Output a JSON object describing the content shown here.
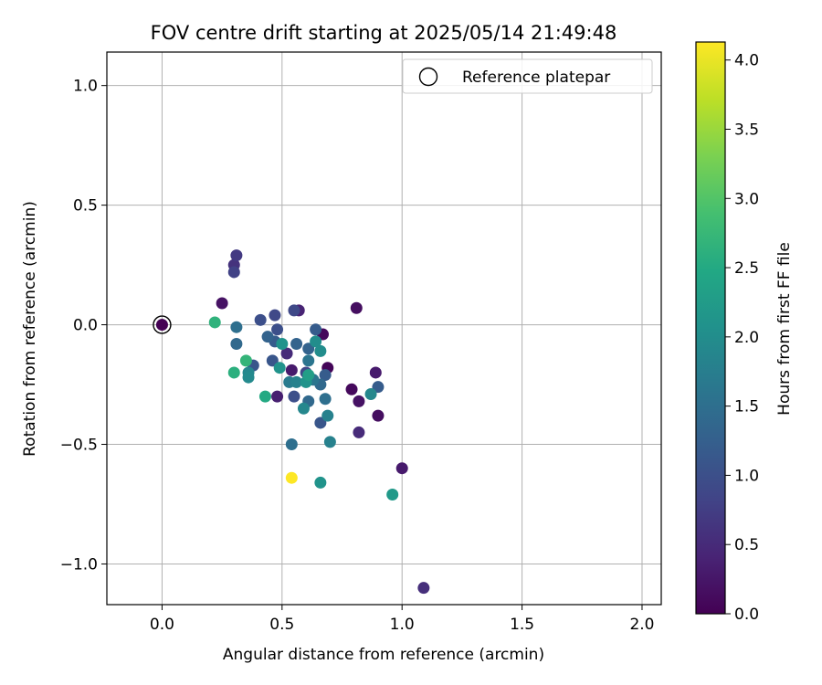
{
  "chart_data": {
    "type": "scatter",
    "title": "FOV centre drift starting at 2025/05/14 21:49:48",
    "xlabel": "Angular distance from reference (arcmin)",
    "ylabel": "Rotation from reference (arcmin)",
    "xlim": [
      -0.23,
      2.08
    ],
    "ylim": [
      -1.17,
      1.14
    ],
    "x_ticks": [
      0.0,
      0.5,
      1.0,
      1.5,
      2.0
    ],
    "x_tick_labels": [
      "0.0",
      "0.5",
      "1.0",
      "1.5",
      "2.0"
    ],
    "y_ticks": [
      -1.0,
      -0.5,
      0.0,
      0.5,
      1.0
    ],
    "y_tick_labels": [
      "−1.0",
      "−0.5",
      "0.0",
      "0.5",
      "1.0"
    ],
    "grid": true,
    "legend": {
      "placement": "top-right",
      "entries": [
        {
          "label": "Reference platepar",
          "marker": "open-circle",
          "color": "#000000"
        }
      ]
    },
    "colorbar": {
      "label": "Hours from first FF file",
      "colormap": "viridis",
      "range": [
        0.0,
        4.13
      ],
      "ticks": [
        0.0,
        0.5,
        1.0,
        1.5,
        2.0,
        2.5,
        3.0,
        3.5,
        4.0
      ],
      "tick_labels": [
        "0.0",
        "0.5",
        "1.0",
        "1.5",
        "2.0",
        "2.5",
        "3.0",
        "3.5",
        "4.0"
      ]
    },
    "reference_point": {
      "x": 0.0,
      "y": 0.0
    },
    "points": [
      {
        "x": 0.0,
        "y": 0.0,
        "c": 0.0
      },
      {
        "x": 0.25,
        "y": 0.09,
        "c": 0.2
      },
      {
        "x": 0.81,
        "y": 0.07,
        "c": 0.15
      },
      {
        "x": 0.67,
        "y": -0.04,
        "c": 0.1
      },
      {
        "x": 0.69,
        "y": -0.18,
        "c": 0.05
      },
      {
        "x": 0.79,
        "y": -0.27,
        "c": 0.1
      },
      {
        "x": 0.82,
        "y": -0.32,
        "c": 0.2
      },
      {
        "x": 0.9,
        "y": -0.38,
        "c": 0.15
      },
      {
        "x": 0.89,
        "y": -0.2,
        "c": 0.3
      },
      {
        "x": 0.82,
        "y": -0.45,
        "c": 0.5
      },
      {
        "x": 1.0,
        "y": -0.6,
        "c": 0.3
      },
      {
        "x": 1.09,
        "y": -1.1,
        "c": 0.55
      },
      {
        "x": 0.54,
        "y": -0.19,
        "c": 0.3
      },
      {
        "x": 0.48,
        "y": -0.3,
        "c": 0.35
      },
      {
        "x": 0.57,
        "y": 0.06,
        "c": 0.4
      },
      {
        "x": 0.52,
        "y": -0.12,
        "c": 0.5
      },
      {
        "x": 0.3,
        "y": 0.25,
        "c": 0.6
      },
      {
        "x": 0.31,
        "y": 0.29,
        "c": 0.7
      },
      {
        "x": 0.3,
        "y": 0.22,
        "c": 0.8
      },
      {
        "x": 0.55,
        "y": 0.06,
        "c": 0.9
      },
      {
        "x": 0.47,
        "y": 0.04,
        "c": 0.9
      },
      {
        "x": 0.41,
        "y": 0.02,
        "c": 1.0
      },
      {
        "x": 0.48,
        "y": -0.02,
        "c": 1.0
      },
      {
        "x": 0.38,
        "y": -0.17,
        "c": 1.1
      },
      {
        "x": 0.46,
        "y": -0.15,
        "c": 1.1
      },
      {
        "x": 0.55,
        "y": -0.3,
        "c": 1.0
      },
      {
        "x": 0.6,
        "y": -0.2,
        "c": 0.9
      },
      {
        "x": 0.66,
        "y": -0.41,
        "c": 1.1
      },
      {
        "x": 0.68,
        "y": -0.21,
        "c": 1.2
      },
      {
        "x": 0.9,
        "y": -0.26,
        "c": 1.2
      },
      {
        "x": 0.64,
        "y": -0.02,
        "c": 1.2
      },
      {
        "x": 0.61,
        "y": -0.1,
        "c": 1.3
      },
      {
        "x": 0.56,
        "y": -0.08,
        "c": 1.3
      },
      {
        "x": 0.47,
        "y": -0.07,
        "c": 1.2
      },
      {
        "x": 0.44,
        "y": -0.05,
        "c": 1.3
      },
      {
        "x": 0.61,
        "y": -0.32,
        "c": 1.4
      },
      {
        "x": 0.66,
        "y": -0.25,
        "c": 1.4
      },
      {
        "x": 0.31,
        "y": -0.08,
        "c": 1.4
      },
      {
        "x": 0.31,
        "y": -0.01,
        "c": 1.5
      },
      {
        "x": 0.54,
        "y": -0.5,
        "c": 1.5
      },
      {
        "x": 0.68,
        "y": -0.31,
        "c": 1.5
      },
      {
        "x": 0.61,
        "y": -0.15,
        "c": 1.6
      },
      {
        "x": 0.63,
        "y": -0.23,
        "c": 1.6
      },
      {
        "x": 0.53,
        "y": -0.24,
        "c": 1.7
      },
      {
        "x": 0.56,
        "y": -0.24,
        "c": 1.8
      },
      {
        "x": 0.69,
        "y": -0.38,
        "c": 1.8
      },
      {
        "x": 0.7,
        "y": -0.49,
        "c": 1.8
      },
      {
        "x": 0.59,
        "y": -0.35,
        "c": 1.9
      },
      {
        "x": 0.36,
        "y": -0.2,
        "c": 1.9
      },
      {
        "x": 0.36,
        "y": -0.22,
        "c": 1.95
      },
      {
        "x": 0.64,
        "y": -0.07,
        "c": 2.0
      },
      {
        "x": 0.66,
        "y": -0.11,
        "c": 2.0
      },
      {
        "x": 0.5,
        "y": -0.08,
        "c": 2.1
      },
      {
        "x": 0.49,
        "y": -0.18,
        "c": 2.1
      },
      {
        "x": 0.6,
        "y": -0.24,
        "c": 2.1
      },
      {
        "x": 0.87,
        "y": -0.29,
        "c": 1.9
      },
      {
        "x": 0.66,
        "y": -0.66,
        "c": 2.1
      },
      {
        "x": 0.96,
        "y": -0.71,
        "c": 2.2
      },
      {
        "x": 0.61,
        "y": -0.21,
        "c": 2.3
      },
      {
        "x": 0.43,
        "y": -0.3,
        "c": 2.5
      },
      {
        "x": 0.3,
        "y": -0.2,
        "c": 2.6
      },
      {
        "x": 0.22,
        "y": 0.01,
        "c": 2.65
      },
      {
        "x": 0.35,
        "y": -0.15,
        "c": 2.7
      },
      {
        "x": 0.54,
        "y": -0.64,
        "c": 4.13
      }
    ]
  }
}
